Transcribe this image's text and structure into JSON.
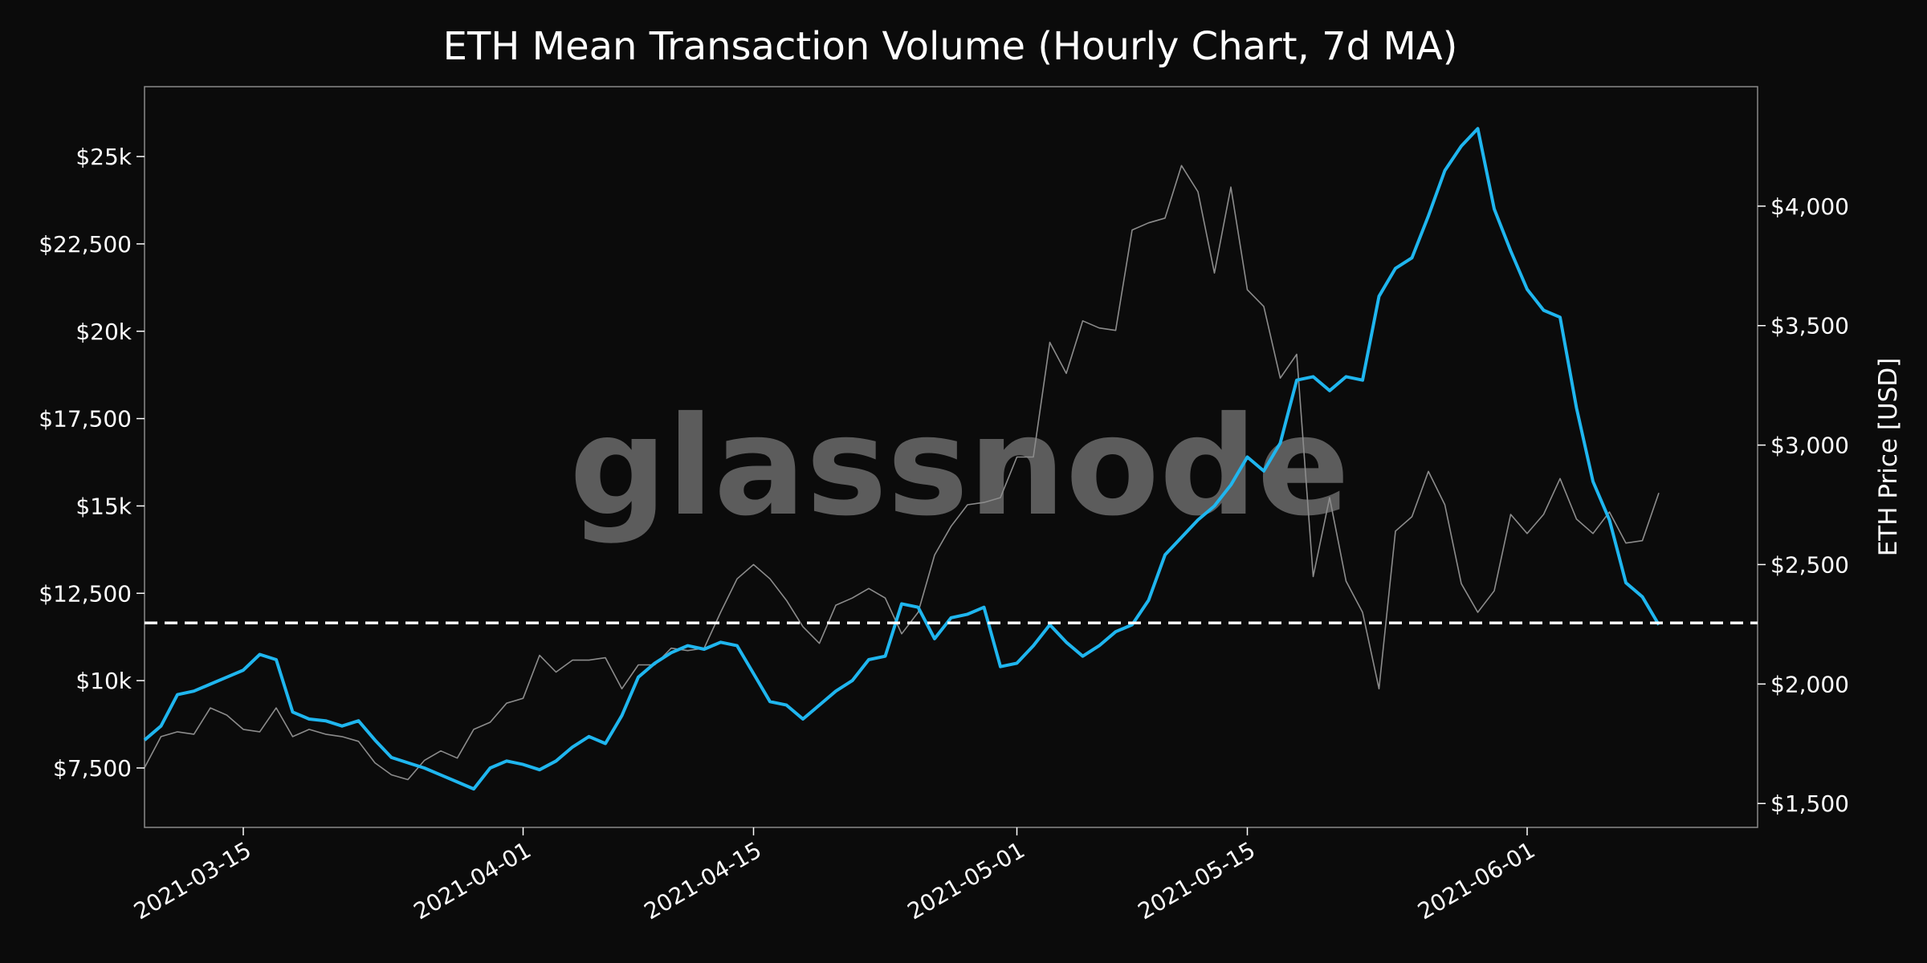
{
  "chart_data": {
    "type": "line",
    "title": "ETH Mean Transaction Volume (Hourly Chart, 7d MA)",
    "watermark": "glassnode",
    "xlabel": "",
    "ylabel_left": "",
    "ylabel_right": "ETH Price [USD]",
    "x_ticks": [
      "2021-03-15",
      "2021-04-01",
      "2021-04-15",
      "2021-05-01",
      "2021-05-15",
      "2021-06-01"
    ],
    "y_left_ticks": [
      "$7,500",
      "$10k",
      "$12,500",
      "$15k",
      "$17,500",
      "$20k",
      "$22,500",
      "$25k"
    ],
    "y_left_tick_values": [
      7500,
      10000,
      12500,
      15000,
      17500,
      20000,
      22500,
      25000
    ],
    "y_right_ticks": [
      "$1,500",
      "$2,000",
      "$2,500",
      "$3,000",
      "$3,500",
      "$4,000"
    ],
    "y_right_tick_values": [
      1500,
      2000,
      2500,
      3000,
      3500,
      4000
    ],
    "xlim": [
      "2021-03-09",
      "2021-06-15"
    ],
    "ylim_left": [
      5800,
      27000
    ],
    "ylim_right": [
      1400,
      4500
    ],
    "grid": false,
    "reference_line": {
      "axis": "left",
      "value": 11650,
      "style": "dashed",
      "color": "#ffffff"
    },
    "series": [
      {
        "axis": "left",
        "color": "#1fb6ef",
        "points": [
          [
            "2021-03-09",
            8300
          ],
          [
            "2021-03-10",
            8700
          ],
          [
            "2021-03-11",
            9600
          ],
          [
            "2021-03-12",
            9700
          ],
          [
            "2021-03-13",
            9900
          ],
          [
            "2021-03-14",
            10100
          ],
          [
            "2021-03-15",
            10300
          ],
          [
            "2021-03-16",
            10750
          ],
          [
            "2021-03-17",
            10600
          ],
          [
            "2021-03-18",
            9100
          ],
          [
            "2021-03-19",
            8900
          ],
          [
            "2021-03-20",
            8850
          ],
          [
            "2021-03-21",
            8700
          ],
          [
            "2021-03-22",
            8850
          ],
          [
            "2021-03-23",
            8300
          ],
          [
            "2021-03-24",
            7800
          ],
          [
            "2021-03-25",
            7650
          ],
          [
            "2021-03-26",
            7500
          ],
          [
            "2021-03-27",
            7300
          ],
          [
            "2021-03-28",
            7100
          ],
          [
            "2021-03-29",
            6900
          ],
          [
            "2021-03-30",
            7500
          ],
          [
            "2021-03-31",
            7700
          ],
          [
            "2021-04-01",
            7600
          ],
          [
            "2021-04-02",
            7450
          ],
          [
            "2021-04-03",
            7700
          ],
          [
            "2021-04-04",
            8100
          ],
          [
            "2021-04-05",
            8400
          ],
          [
            "2021-04-06",
            8200
          ],
          [
            "2021-04-07",
            9000
          ],
          [
            "2021-04-08",
            10100
          ],
          [
            "2021-04-09",
            10500
          ],
          [
            "2021-04-10",
            10800
          ],
          [
            "2021-04-11",
            11000
          ],
          [
            "2021-04-12",
            10900
          ],
          [
            "2021-04-13",
            11100
          ],
          [
            "2021-04-14",
            11000
          ],
          [
            "2021-04-15",
            10200
          ],
          [
            "2021-04-16",
            9400
          ],
          [
            "2021-04-17",
            9300
          ],
          [
            "2021-04-18",
            8900
          ],
          [
            "2021-04-19",
            9300
          ],
          [
            "2021-04-20",
            9700
          ],
          [
            "2021-04-21",
            10000
          ],
          [
            "2021-04-22",
            10600
          ],
          [
            "2021-04-23",
            10700
          ],
          [
            "2021-04-24",
            12200
          ],
          [
            "2021-04-25",
            12100
          ],
          [
            "2021-04-26",
            11200
          ],
          [
            "2021-04-27",
            11800
          ],
          [
            "2021-04-28",
            11900
          ],
          [
            "2021-04-29",
            12100
          ],
          [
            "2021-04-30",
            10400
          ],
          [
            "2021-05-01",
            10500
          ],
          [
            "2021-05-02",
            11000
          ],
          [
            "2021-05-03",
            11600
          ],
          [
            "2021-05-04",
            11100
          ],
          [
            "2021-05-05",
            10700
          ],
          [
            "2021-05-06",
            11000
          ],
          [
            "2021-05-07",
            11400
          ],
          [
            "2021-05-08",
            11600
          ],
          [
            "2021-05-09",
            12300
          ],
          [
            "2021-05-10",
            13600
          ],
          [
            "2021-05-11",
            14100
          ],
          [
            "2021-05-12",
            14600
          ],
          [
            "2021-05-13",
            15000
          ],
          [
            "2021-05-14",
            15600
          ],
          [
            "2021-05-15",
            16400
          ],
          [
            "2021-05-16",
            16000
          ],
          [
            "2021-05-17",
            16800
          ],
          [
            "2021-05-18",
            18600
          ],
          [
            "2021-05-19",
            18700
          ],
          [
            "2021-05-20",
            18300
          ],
          [
            "2021-05-21",
            18700
          ],
          [
            "2021-05-22",
            18600
          ],
          [
            "2021-05-23",
            21000
          ],
          [
            "2021-05-24",
            21800
          ],
          [
            "2021-05-25",
            22100
          ],
          [
            "2021-05-26",
            23300
          ],
          [
            "2021-05-27",
            24600
          ],
          [
            "2021-05-28",
            25300
          ],
          [
            "2021-05-29",
            25800
          ],
          [
            "2021-05-30",
            23500
          ],
          [
            "2021-05-31",
            22300
          ],
          [
            "2021-06-01",
            21200
          ],
          [
            "2021-06-02",
            20600
          ],
          [
            "2021-06-03",
            20400
          ],
          [
            "2021-06-04",
            17800
          ],
          [
            "2021-06-05",
            15700
          ],
          [
            "2021-06-06",
            14600
          ],
          [
            "2021-06-07",
            12800
          ],
          [
            "2021-06-08",
            12400
          ],
          [
            "2021-06-09",
            11600
          ]
        ]
      },
      {
        "axis": "right",
        "color": "#8c8c8c",
        "points": [
          [
            "2021-03-09",
            1650
          ],
          [
            "2021-03-10",
            1780
          ],
          [
            "2021-03-11",
            1800
          ],
          [
            "2021-03-12",
            1790
          ],
          [
            "2021-03-13",
            1900
          ],
          [
            "2021-03-14",
            1870
          ],
          [
            "2021-03-15",
            1810
          ],
          [
            "2021-03-16",
            1800
          ],
          [
            "2021-03-17",
            1900
          ],
          [
            "2021-03-18",
            1780
          ],
          [
            "2021-03-19",
            1810
          ],
          [
            "2021-03-20",
            1790
          ],
          [
            "2021-03-21",
            1780
          ],
          [
            "2021-03-22",
            1760
          ],
          [
            "2021-03-23",
            1670
          ],
          [
            "2021-03-24",
            1620
          ],
          [
            "2021-03-25",
            1600
          ],
          [
            "2021-03-26",
            1680
          ],
          [
            "2021-03-27",
            1720
          ],
          [
            "2021-03-28",
            1690
          ],
          [
            "2021-03-29",
            1810
          ],
          [
            "2021-03-30",
            1840
          ],
          [
            "2021-03-31",
            1920
          ],
          [
            "2021-04-01",
            1940
          ],
          [
            "2021-04-02",
            2120
          ],
          [
            "2021-04-03",
            2050
          ],
          [
            "2021-04-04",
            2100
          ],
          [
            "2021-04-05",
            2100
          ],
          [
            "2021-04-06",
            2110
          ],
          [
            "2021-04-07",
            1980
          ],
          [
            "2021-04-08",
            2080
          ],
          [
            "2021-04-09",
            2080
          ],
          [
            "2021-04-10",
            2150
          ],
          [
            "2021-04-11",
            2140
          ],
          [
            "2021-04-12",
            2150
          ],
          [
            "2021-04-13",
            2300
          ],
          [
            "2021-04-14",
            2440
          ],
          [
            "2021-04-15",
            2500
          ],
          [
            "2021-04-16",
            2440
          ],
          [
            "2021-04-17",
            2350
          ],
          [
            "2021-04-18",
            2240
          ],
          [
            "2021-04-19",
            2170
          ],
          [
            "2021-04-20",
            2330
          ],
          [
            "2021-04-21",
            2360
          ],
          [
            "2021-04-22",
            2400
          ],
          [
            "2021-04-23",
            2360
          ],
          [
            "2021-04-24",
            2210
          ],
          [
            "2021-04-25",
            2300
          ],
          [
            "2021-04-26",
            2540
          ],
          [
            "2021-04-27",
            2660
          ],
          [
            "2021-04-28",
            2750
          ],
          [
            "2021-04-29",
            2760
          ],
          [
            "2021-04-30",
            2780
          ],
          [
            "2021-05-01",
            2950
          ],
          [
            "2021-05-02",
            2950
          ],
          [
            "2021-05-03",
            3430
          ],
          [
            "2021-05-04",
            3300
          ],
          [
            "2021-05-05",
            3520
          ],
          [
            "2021-05-06",
            3490
          ],
          [
            "2021-05-07",
            3480
          ],
          [
            "2021-05-08",
            3900
          ],
          [
            "2021-05-09",
            3930
          ],
          [
            "2021-05-10",
            3950
          ],
          [
            "2021-05-11",
            4170
          ],
          [
            "2021-05-12",
            4060
          ],
          [
            "2021-05-13",
            3720
          ],
          [
            "2021-05-14",
            4080
          ],
          [
            "2021-05-15",
            3650
          ],
          [
            "2021-05-16",
            3580
          ],
          [
            "2021-05-17",
            3280
          ],
          [
            "2021-05-18",
            3380
          ],
          [
            "2021-05-19",
            2450
          ],
          [
            "2021-05-20",
            2780
          ],
          [
            "2021-05-21",
            2430
          ],
          [
            "2021-05-22",
            2300
          ],
          [
            "2021-05-23",
            1980
          ],
          [
            "2021-05-24",
            2640
          ],
          [
            "2021-05-25",
            2700
          ],
          [
            "2021-05-26",
            2890
          ],
          [
            "2021-05-27",
            2750
          ],
          [
            "2021-05-28",
            2420
          ],
          [
            "2021-05-29",
            2300
          ],
          [
            "2021-05-30",
            2390
          ],
          [
            "2021-05-31",
            2710
          ],
          [
            "2021-06-01",
            2630
          ],
          [
            "2021-06-02",
            2710
          ],
          [
            "2021-06-03",
            2860
          ],
          [
            "2021-06-04",
            2690
          ],
          [
            "2021-06-05",
            2630
          ],
          [
            "2021-06-06",
            2720
          ],
          [
            "2021-06-07",
            2590
          ],
          [
            "2021-06-08",
            2600
          ],
          [
            "2021-06-09",
            2800
          ]
        ]
      }
    ]
  }
}
